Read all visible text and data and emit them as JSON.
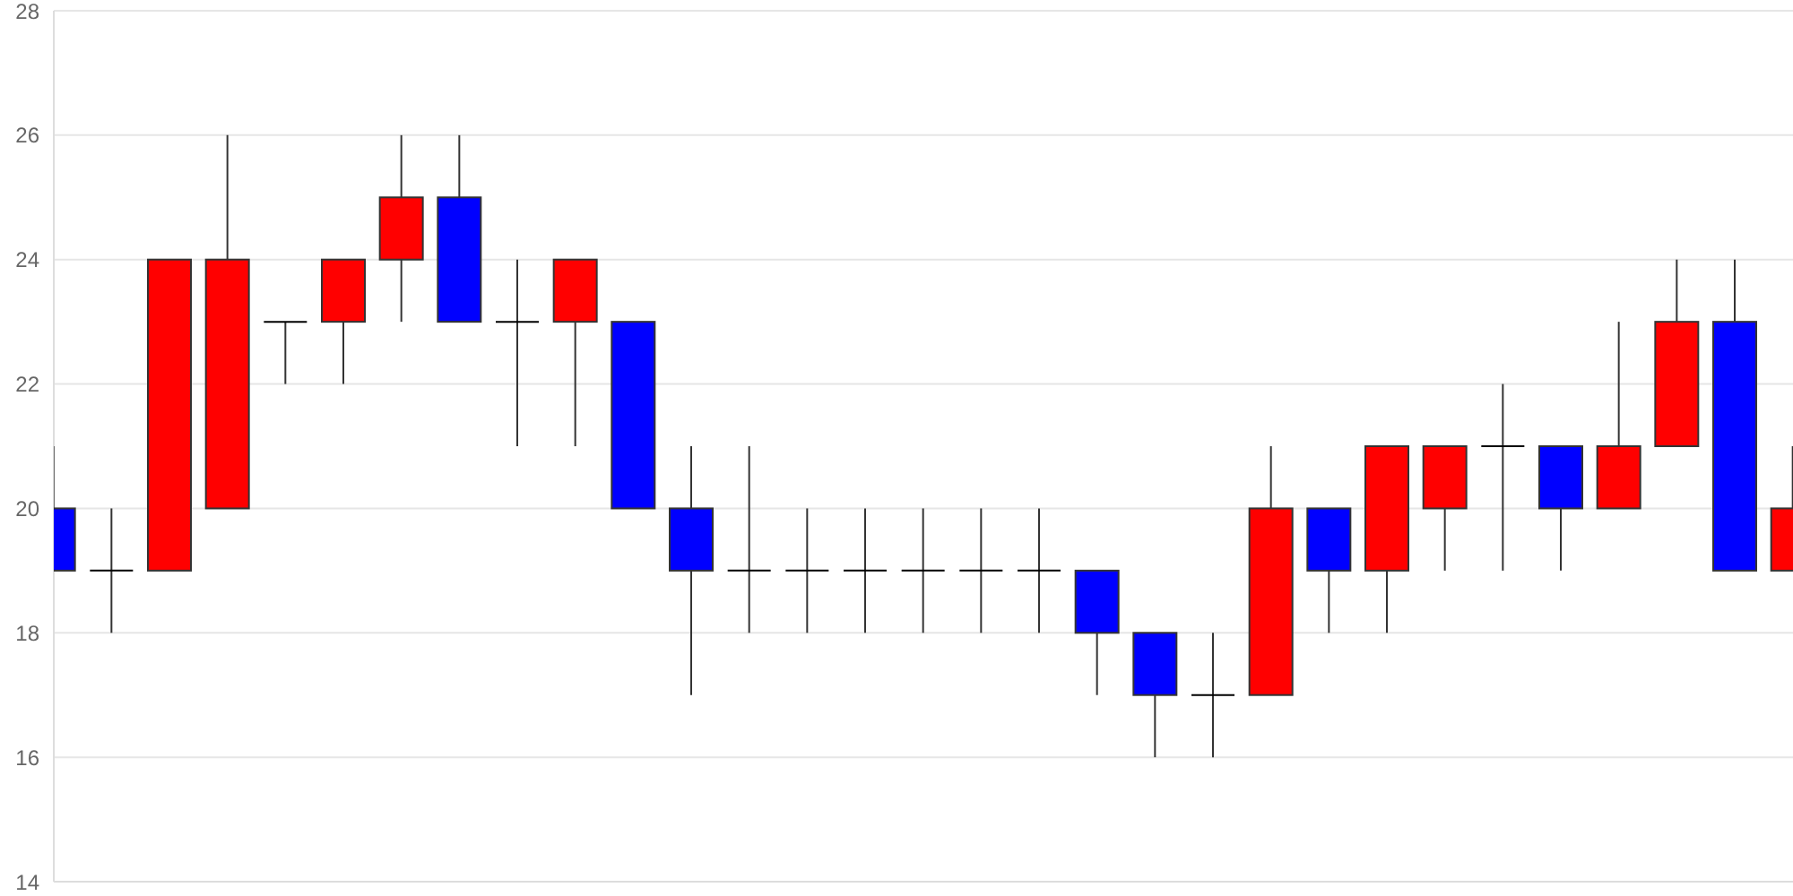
{
  "chart_data": {
    "type": "candlestick",
    "categories": [
      null,
      null,
      null,
      null,
      null,
      null,
      null,
      null,
      null,
      null,
      null,
      null,
      null,
      null,
      null,
      null,
      null,
      null,
      null,
      null,
      null,
      null,
      null,
      null,
      null,
      null,
      null,
      null,
      null,
      null,
      null
    ],
    "ohlc": [
      [
        20,
        21,
        19,
        19
      ],
      [
        19,
        20,
        18,
        19
      ],
      [
        19,
        24,
        19,
        24
      ],
      [
        20,
        26,
        20,
        24
      ],
      [
        23,
        23,
        22,
        23
      ],
      [
        23,
        24,
        22,
        24
      ],
      [
        24,
        26,
        23,
        25
      ],
      [
        25,
        26,
        23,
        23
      ],
      [
        23,
        24,
        21,
        23
      ],
      [
        23,
        24,
        21,
        24
      ],
      [
        23,
        23,
        20,
        20
      ],
      [
        20,
        21,
        17,
        19
      ],
      [
        19,
        21,
        18,
        19
      ],
      [
        19,
        20,
        18,
        19
      ],
      [
        19,
        20,
        18,
        19
      ],
      [
        19,
        20,
        18,
        19
      ],
      [
        19,
        20,
        18,
        19
      ],
      [
        19,
        20,
        18,
        19
      ],
      [
        19,
        19,
        17,
        18
      ],
      [
        18,
        18,
        16,
        17
      ],
      [
        17,
        18,
        16,
        17
      ],
      [
        17,
        21,
        17,
        20
      ],
      [
        20,
        20,
        18,
        19
      ],
      [
        19,
        21,
        18,
        21
      ],
      [
        20,
        21,
        19,
        21
      ],
      [
        21,
        22,
        19,
        21
      ],
      [
        21,
        21,
        19,
        20
      ],
      [
        20,
        23,
        20,
        21
      ],
      [
        21,
        24,
        21,
        23
      ],
      [
        23,
        24,
        19,
        19
      ],
      [
        19,
        21,
        19,
        20
      ]
    ],
    "colors": [
      "#0000ff",
      "#000000",
      "#ff0000",
      "#ff0000",
      "#000000",
      "#ff0000",
      "#ff0000",
      "#0000ff",
      "#000000",
      "#ff0000",
      "#0000ff",
      "#0000ff",
      "#000000",
      "#000000",
      "#000000",
      "#000000",
      "#000000",
      "#000000",
      "#0000ff",
      "#0000ff",
      "#000000",
      "#ff0000",
      "#0000ff",
      "#ff0000",
      "#ff0000",
      "#000000",
      "#0000ff",
      "#ff0000",
      "#ff0000",
      "#0000ff",
      "#ff0000"
    ],
    "ylim": [
      14,
      28
    ],
    "yticks": [
      14,
      16,
      18,
      20,
      22,
      24,
      26,
      28
    ],
    "grid": "y",
    "tick_labels": "y"
  }
}
